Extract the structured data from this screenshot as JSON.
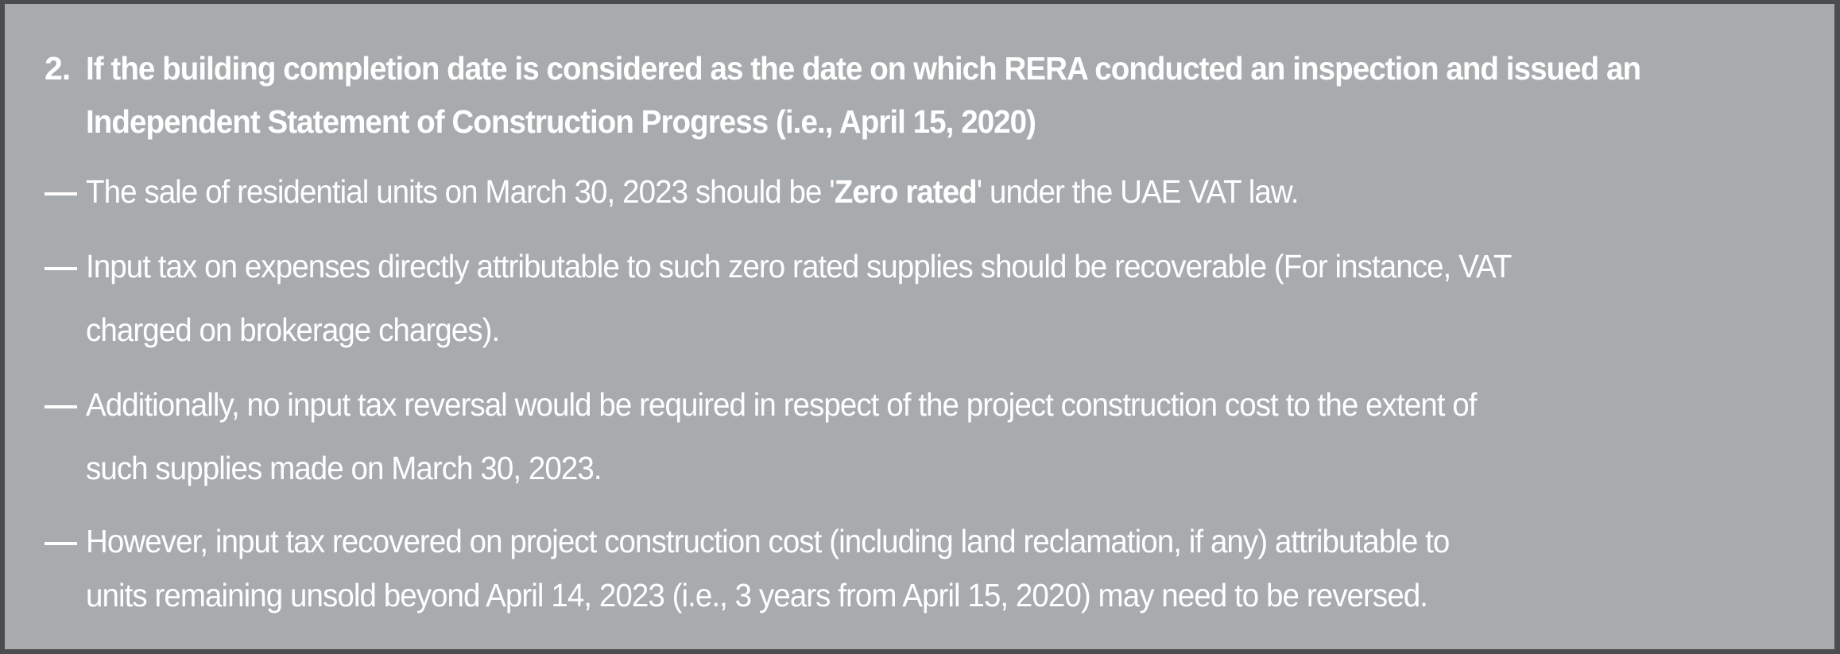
{
  "panel": {
    "background_color": "#a8abad",
    "border_color": "#4a4c4e",
    "text_color": "#ffffff"
  },
  "bullet_marker": "—",
  "heading": {
    "number": "2.",
    "lines": [
      "If the building completion date is considered as the date on which RERA conducted an inspection and issued an",
      "Independent Statement of Construction Progress (i.e., April 15, 2020)"
    ]
  },
  "bullets": [
    {
      "line1_pre": "The sale of residential units on March 30, 2023 should be '",
      "line1_bold": "Zero rated",
      "line1_post": "' under the UAE VAT law."
    },
    {
      "lines": [
        "Input tax on expenses directly attributable to such zero rated supplies should be recoverable (For instance, VAT",
        "charged on brokerage charges)."
      ]
    },
    {
      "lines": [
        "Additionally, no input tax reversal would be required in respect of the project construction cost to the extent of",
        "such supplies made on March 30, 2023."
      ]
    },
    {
      "lines": [
        "However, input tax recovered on project construction cost (including land reclamation, if any) attributable to",
        "units remaining unsold beyond April 14, 2023 (i.e., 3 years from April 15, 2020) may need to be reversed."
      ]
    }
  ]
}
